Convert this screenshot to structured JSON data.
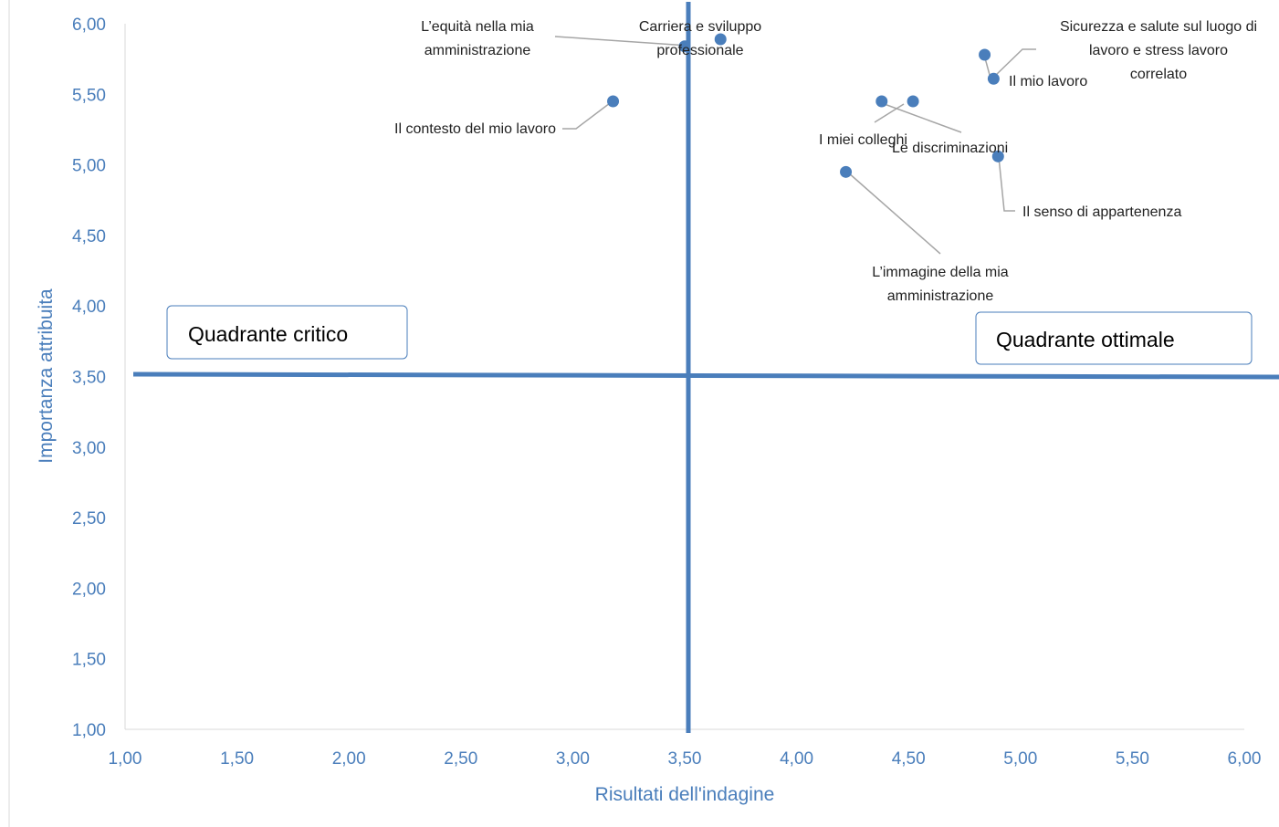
{
  "chart_data": {
    "type": "scatter",
    "title": "",
    "xlabel": "Risultati dell'indagine",
    "ylabel": "Importanza attribuita",
    "xlim": [
      1.0,
      6.0
    ],
    "ylim": [
      1.0,
      6.0
    ],
    "x_ticks": [
      "1,00",
      "1,50",
      "2,00",
      "2,50",
      "3,00",
      "3,50",
      "4,00",
      "4,50",
      "5,00",
      "5,50",
      "6,00"
    ],
    "y_ticks": [
      "1,00",
      "1,50",
      "2,00",
      "2,50",
      "3,00",
      "3,50",
      "4,00",
      "4,50",
      "5,00",
      "5,50",
      "6,00"
    ],
    "grid": false,
    "legend": "none",
    "reference_lines": {
      "x": 3.5,
      "y": 3.5
    },
    "colors": {
      "point": "#4a7ebb",
      "reference": "#4a7ebb",
      "axis_text": "#4a7ebb",
      "leader": "#a6a6a6"
    },
    "points": [
      {
        "label": [
          "Il contesto del mio lavoro"
        ],
        "x": 3.18,
        "y": 5.45
      },
      {
        "label": [
          "L’equità nella mia",
          "amministrazione"
        ],
        "x": 3.5,
        "y": 5.84
      },
      {
        "label": [
          "Carriera e sviluppo",
          "professionale"
        ],
        "x": 3.66,
        "y": 5.89
      },
      {
        "label": [
          "I miei colleghi"
        ],
        "x": 4.38,
        "y": 5.45
      },
      {
        "label": [
          "Le discriminazioni"
        ],
        "x": 4.52,
        "y": 5.45
      },
      {
        "label": [
          "L’immagine della mia",
          "amministrazione"
        ],
        "x": 4.22,
        "y": 4.95
      },
      {
        "label": [
          "Sicurezza e salute sul luogo di",
          "lavoro e stress lavoro",
          "correlato"
        ],
        "x": 4.84,
        "y": 5.78
      },
      {
        "label": [
          "Il mio lavoro"
        ],
        "x": 4.88,
        "y": 5.61
      },
      {
        "label": [
          "Il senso di appartenenza"
        ],
        "x": 4.9,
        "y": 5.06
      }
    ],
    "annotations": [
      "Quadrante critico",
      "Quadrante ottimale"
    ]
  }
}
